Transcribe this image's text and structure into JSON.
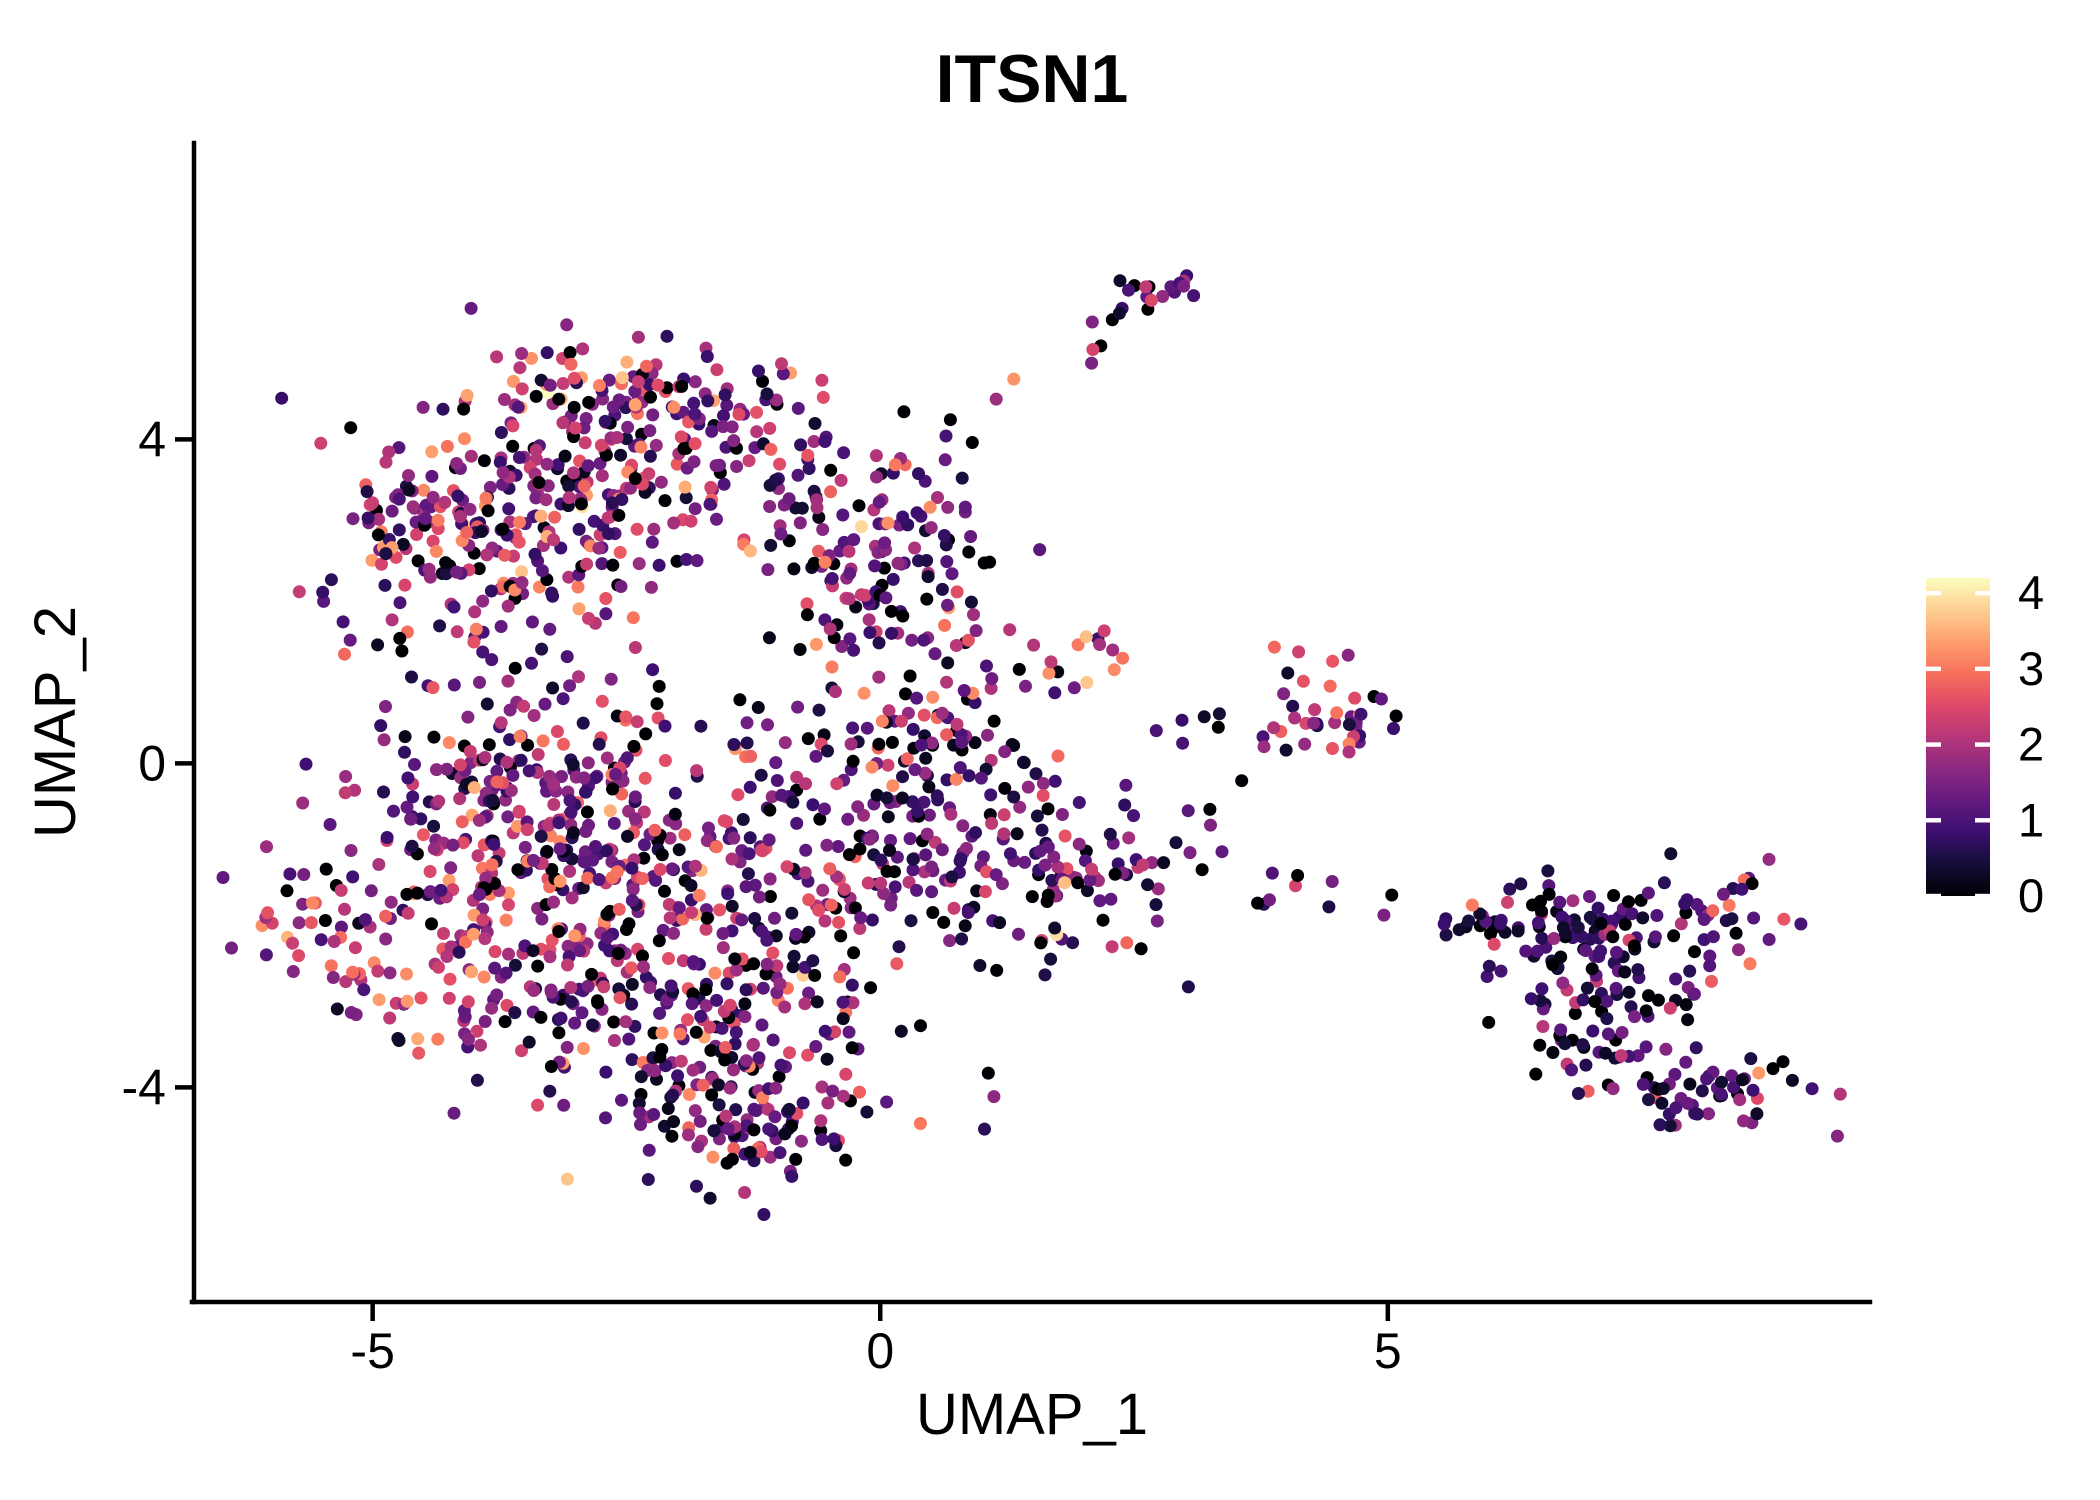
{
  "title": "ITSN1",
  "chart_data": {
    "type": "scatter",
    "title": "ITSN1",
    "xlabel": "UMAP_1",
    "ylabel": "UMAP_2",
    "xlim": [
      -6.76,
      9.75
    ],
    "ylim": [
      -6.65,
      7.66
    ],
    "x_ticks": [
      -5,
      0,
      5
    ],
    "y_ticks": [
      -4,
      0,
      4
    ],
    "grid": false,
    "background": "#ffffff",
    "point_radius_px": 6.5,
    "seed": 1234,
    "color_scale": {
      "name": "magma",
      "domain": [
        0,
        4.2
      ],
      "legend_ticks": [
        0,
        1,
        2,
        3,
        4
      ],
      "legend_position": "right",
      "stops": [
        [
          0.0,
          "#000004"
        ],
        [
          0.1,
          "#140e36"
        ],
        [
          0.2,
          "#3b0f70"
        ],
        [
          0.3,
          "#641a80"
        ],
        [
          0.4,
          "#8c2981"
        ],
        [
          0.5,
          "#b73779"
        ],
        [
          0.6,
          "#de4968"
        ],
        [
          0.7,
          "#f7705c"
        ],
        [
          0.8,
          "#fe9f6d"
        ],
        [
          0.9,
          "#fecf92"
        ],
        [
          1.0,
          "#fcfdbf"
        ]
      ]
    },
    "holes": [
      {
        "cx": -1.95,
        "cy": -0.15,
        "rx": 0.5,
        "ry": 0.55,
        "keep": 0.15
      }
    ],
    "clusters": [
      {
        "name": "topleft-core",
        "type": "gauss",
        "cx": -2.75,
        "cy": 3.6,
        "sx": 1.0,
        "sy": 0.65,
        "n": 210,
        "v": {
          "mean": 1.45,
          "sd": 0.8,
          "p0": 0.1,
          "hiP": 0.09,
          "hiMean": 3.0,
          "hiSd": 0.45
        }
      },
      {
        "name": "topleft-ridge",
        "type": "gauss",
        "cx": -2.3,
        "cy": 4.5,
        "sx": 0.8,
        "sy": 0.33,
        "n": 100,
        "v": {
          "mean": 1.5,
          "sd": 0.85,
          "p0": 0.1,
          "hiP": 0.1,
          "hiMean": 3.1,
          "hiSd": 0.45
        }
      },
      {
        "name": "topleft-lower",
        "type": "gauss",
        "cx": -3.6,
        "cy": 2.7,
        "sx": 0.75,
        "sy": 0.5,
        "n": 100,
        "v": {
          "mean": 1.5,
          "sd": 0.85,
          "p0": 0.08,
          "hiP": 0.1,
          "hiMean": 3.0,
          "hiSd": 0.45
        }
      },
      {
        "name": "topleft-left-spur",
        "type": "gauss",
        "cx": -4.5,
        "cy": 2.95,
        "sx": 0.4,
        "sy": 0.4,
        "n": 40,
        "v": {
          "mean": 1.6,
          "sd": 0.8,
          "p0": 0.08,
          "hiP": 0.12,
          "hiMean": 3.0,
          "hiSd": 0.4
        }
      },
      {
        "name": "topleft-right-arm",
        "type": "gauss",
        "cx": 0.15,
        "cy": 2.05,
        "sx": 0.55,
        "sy": 0.75,
        "n": 125,
        "v": {
          "mean": 1.25,
          "sd": 0.8,
          "p0": 0.12,
          "hiP": 0.06,
          "hiMean": 3.0,
          "hiSd": 0.45
        }
      },
      {
        "name": "topleft-arm-join",
        "type": "gauss",
        "cx": -0.3,
        "cy": 3.3,
        "sx": 0.5,
        "sy": 0.4,
        "n": 40,
        "v": {
          "mean": 1.3,
          "sd": 0.8,
          "p0": 0.1,
          "hiP": 0.08,
          "hiMean": 3.0,
          "hiSd": 0.45
        }
      },
      {
        "name": "gap-scatter",
        "type": "gauss",
        "cx": -3.9,
        "cy": 1.35,
        "sx": 0.7,
        "sy": 0.45,
        "n": 45,
        "v": {
          "mean": 1.3,
          "sd": 0.8,
          "p0": 0.12,
          "hiP": 0.1,
          "hiMean": 2.9,
          "hiSd": 0.4
        }
      },
      {
        "name": "trail-to-top",
        "type": "line",
        "x1": 0.05,
        "y1": 3.6,
        "x2": 2.45,
        "y2": 5.45,
        "jit": 0.16,
        "n": 13,
        "v": {
          "mean": 1.3,
          "sd": 0.8,
          "p0": 0.12,
          "hiP": 0.15,
          "hiMean": 2.8,
          "hiSd": 0.4
        }
      },
      {
        "name": "top-small-cluster",
        "type": "gauss",
        "cx": 2.78,
        "cy": 5.88,
        "sx": 0.2,
        "sy": 0.17,
        "n": 14,
        "v": {
          "mean": 1.4,
          "sd": 0.8,
          "p0": 0.12,
          "hiP": 0.12,
          "hiMean": 2.7,
          "hiSd": 0.4
        }
      },
      {
        "name": "top-small-outliers",
        "type": "gauss",
        "cx": 2.52,
        "cy": 5.6,
        "sx": 0.15,
        "sy": 0.18,
        "n": 4,
        "v": {
          "mean": 1.2,
          "sd": 1.0,
          "p0": 0.25,
          "hiP": 0.2,
          "hiMean": 2.6,
          "hiSd": 0.3
        }
      },
      {
        "name": "mid-small-cluster",
        "type": "gauss",
        "cx": 1.95,
        "cy": 1.22,
        "sx": 0.28,
        "sy": 0.22,
        "n": 13,
        "v": {
          "mean": 1.6,
          "sd": 0.8,
          "p0": 0.12,
          "hiP": 0.22,
          "hiMean": 3.1,
          "hiSd": 0.35
        }
      },
      {
        "name": "midright-sparse",
        "type": "gauss",
        "cx": 3.15,
        "cy": 0.3,
        "sx": 0.5,
        "sy": 0.55,
        "n": 11,
        "v": {
          "mean": 0.7,
          "sd": 0.5,
          "p0": 0.35,
          "hiP": 0.0,
          "hiMean": 2.5,
          "hiSd": 0.4
        }
      },
      {
        "name": "right-cluster",
        "type": "gauss",
        "cx": 4.45,
        "cy": 0.62,
        "sx": 0.4,
        "sy": 0.28,
        "n": 38,
        "v": {
          "mean": 1.8,
          "sd": 0.7,
          "p0": 0.07,
          "hiP": 0.14,
          "hiMean": 2.9,
          "hiSd": 0.4
        }
      },
      {
        "name": "right-cluster-outlier",
        "type": "gauss",
        "cx": 4.08,
        "cy": 1.5,
        "sx": 0.1,
        "sy": 0.08,
        "n": 2,
        "v": {
          "mean": 2.9,
          "sd": 0.3,
          "p0": 0.0,
          "hiP": 0.0,
          "hiMean": 3.0,
          "hiSd": 0.3
        }
      },
      {
        "name": "main-core-upperleft",
        "type": "gauss",
        "cx": -3.5,
        "cy": -0.7,
        "sx": 0.95,
        "sy": 0.6,
        "n": 190,
        "v": {
          "mean": 1.4,
          "sd": 0.8,
          "p0": 0.09,
          "hiP": 0.1,
          "hiMean": 3.0,
          "hiSd": 0.45
        }
      },
      {
        "name": "main-core-lowerleft",
        "type": "gauss",
        "cx": -3.55,
        "cy": -2.35,
        "sx": 0.9,
        "sy": 0.75,
        "n": 190,
        "v": {
          "mean": 1.4,
          "sd": 0.8,
          "p0": 0.09,
          "hiP": 0.1,
          "hiMean": 3.0,
          "hiSd": 0.45
        }
      },
      {
        "name": "main-left-fin",
        "type": "gauss",
        "cx": -5.3,
        "cy": -2.0,
        "sx": 0.5,
        "sy": 0.45,
        "n": 45,
        "v": {
          "mean": 1.7,
          "sd": 0.8,
          "p0": 0.07,
          "hiP": 0.15,
          "hiMean": 2.9,
          "hiSd": 0.4
        }
      },
      {
        "name": "main-mid",
        "type": "gauss",
        "cx": -1.5,
        "cy": -1.7,
        "sx": 1.0,
        "sy": 0.85,
        "n": 185,
        "v": {
          "mean": 1.3,
          "sd": 0.8,
          "p0": 0.1,
          "hiP": 0.07,
          "hiMean": 3.0,
          "hiSd": 0.45
        }
      },
      {
        "name": "main-right",
        "type": "gauss",
        "cx": 0.4,
        "cy": -1.3,
        "sx": 0.85,
        "sy": 0.7,
        "n": 155,
        "v": {
          "mean": 1.2,
          "sd": 0.75,
          "p0": 0.11,
          "hiP": 0.06,
          "hiMean": 3.0,
          "hiSd": 0.45
        }
      },
      {
        "name": "main-top",
        "type": "gauss",
        "cx": -2.5,
        "cy": 0.0,
        "sx": 1.1,
        "sy": 0.4,
        "n": 105,
        "v": {
          "mean": 1.35,
          "sd": 0.8,
          "p0": 0.1,
          "hiP": 0.08,
          "hiMean": 3.0,
          "hiSd": 0.45
        }
      },
      {
        "name": "main-topright",
        "type": "gauss",
        "cx": 0.7,
        "cy": 0.4,
        "sx": 0.6,
        "sy": 0.5,
        "n": 70,
        "v": {
          "mean": 1.15,
          "sd": 0.75,
          "p0": 0.12,
          "hiP": 0.05,
          "hiMean": 2.9,
          "hiSd": 0.4
        }
      },
      {
        "name": "main-bottom",
        "type": "gauss",
        "cx": -1.7,
        "cy": -3.5,
        "sx": 1.05,
        "sy": 0.6,
        "n": 150,
        "v": {
          "mean": 1.25,
          "sd": 0.8,
          "p0": 0.1,
          "hiP": 0.06,
          "hiMean": 3.0,
          "hiSd": 0.45
        }
      },
      {
        "name": "main-bottom-tip",
        "type": "gauss",
        "cx": -1.35,
        "cy": -4.55,
        "sx": 0.55,
        "sy": 0.4,
        "n": 70,
        "v": {
          "mean": 1.2,
          "sd": 0.75,
          "p0": 0.11,
          "hiP": 0.05,
          "hiMean": 2.9,
          "hiSd": 0.4
        }
      },
      {
        "name": "main-right-arm",
        "type": "gauss",
        "cx": 2.1,
        "cy": -1.5,
        "sx": 0.55,
        "sy": 0.45,
        "n": 60,
        "v": {
          "mean": 1.2,
          "sd": 0.75,
          "p0": 0.12,
          "hiP": 0.05,
          "hiMean": 2.9,
          "hiSd": 0.4
        }
      },
      {
        "name": "connector-right",
        "type": "line",
        "x1": 2.9,
        "y1": -1.2,
        "x2": 5.35,
        "y2": -1.85,
        "jit": 0.18,
        "n": 12,
        "v": {
          "mean": 0.9,
          "sd": 0.6,
          "p0": 0.25,
          "hiP": 0.25,
          "hiMean": 2.4,
          "hiSd": 0.3
        }
      },
      {
        "name": "farright-entry-line",
        "type": "line",
        "x1": 5.5,
        "y1": -1.95,
        "x2": 6.35,
        "y2": -2.05,
        "jit": 0.1,
        "n": 13,
        "v": {
          "mean": 0.6,
          "sd": 0.4,
          "p0": 0.3,
          "hiP": 0.0,
          "hiMean": 2.5,
          "hiSd": 0.3
        }
      },
      {
        "name": "farright-main",
        "type": "gauss",
        "cx": 6.85,
        "cy": -2.0,
        "sx": 0.5,
        "sy": 0.35,
        "n": 85,
        "v": {
          "mean": 0.85,
          "sd": 0.55,
          "p0": 0.16,
          "hiP": 0.05,
          "hiMean": 2.6,
          "hiSd": 0.35
        }
      },
      {
        "name": "farright-east",
        "type": "gauss",
        "cx": 8.3,
        "cy": -1.9,
        "sx": 0.33,
        "sy": 0.3,
        "n": 34,
        "v": {
          "mean": 1.1,
          "sd": 0.7,
          "p0": 0.12,
          "hiP": 0.14,
          "hiMean": 2.6,
          "hiSd": 0.35
        }
      },
      {
        "name": "farright-diag",
        "type": "gauss",
        "cx": 7.1,
        "cy": -2.9,
        "sx": 0.4,
        "sy": 0.5,
        "n": 65,
        "v": {
          "mean": 0.85,
          "sd": 0.55,
          "p0": 0.16,
          "hiP": 0.05,
          "hiMean": 2.5,
          "hiSd": 0.35
        }
      },
      {
        "name": "farright-hook",
        "type": "gauss",
        "cx": 8.0,
        "cy": -4.05,
        "sx": 0.5,
        "sy": 0.26,
        "n": 55,
        "v": {
          "mean": 1.0,
          "sd": 0.6,
          "p0": 0.14,
          "hiP": 0.08,
          "hiMean": 2.7,
          "hiSd": 0.4
        }
      },
      {
        "name": "farright-hook-tip",
        "type": "gauss",
        "cx": 8.6,
        "cy": -3.75,
        "sx": 0.12,
        "sy": 0.3,
        "n": 7,
        "v": {
          "mean": 1.1,
          "sd": 0.7,
          "p0": 0.1,
          "hiP": 0.15,
          "hiMean": 2.9,
          "hiSd": 0.35
        }
      },
      {
        "name": "farright-iso",
        "type": "gauss",
        "cx": 7.9,
        "cy": -2.85,
        "sx": 0.12,
        "sy": 0.2,
        "n": 3,
        "v": {
          "mean": 0.8,
          "sd": 0.8,
          "p0": 0.3,
          "hiP": 0.2,
          "hiMean": 2.3,
          "hiSd": 0.3
        }
      }
    ]
  }
}
